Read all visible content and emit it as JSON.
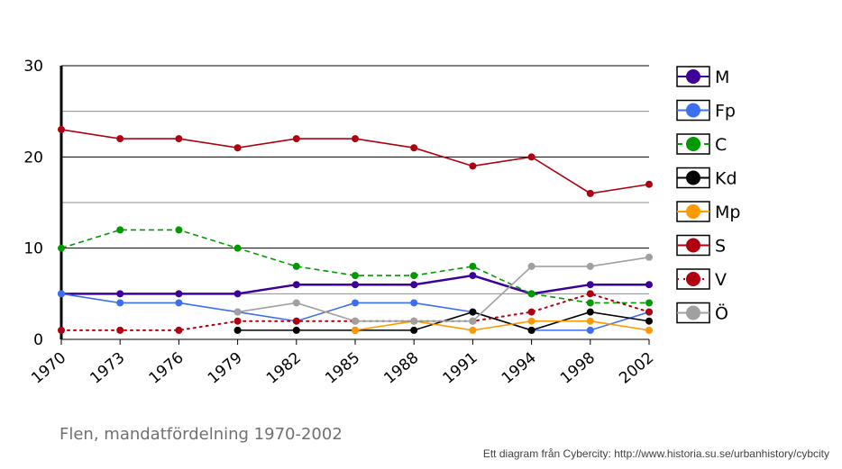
{
  "chart_data": {
    "type": "line",
    "title": "Flen, mandatfördelning 1970-2002",
    "xlabel": "",
    "ylabel": "",
    "ylim": [
      0,
      30
    ],
    "yticks": [
      0,
      10,
      20,
      30
    ],
    "grid": true,
    "legend_position": "right",
    "categories": [
      "1970",
      "1973",
      "1976",
      "1979",
      "1982",
      "1985",
      "1988",
      "1991",
      "1994",
      "1998",
      "2002"
    ],
    "series": [
      {
        "name": "M",
        "color": "#3d0099",
        "dash": "solid",
        "values": [
          5,
          5,
          5,
          5,
          6,
          6,
          6,
          7,
          5,
          6,
          6
        ]
      },
      {
        "name": "Fp",
        "color": "#3b6ff0",
        "dash": "solid",
        "values": [
          5,
          4,
          4,
          3,
          2,
          4,
          4,
          3,
          1,
          1,
          3
        ]
      },
      {
        "name": "C",
        "color": "#009900",
        "dash": "dashed",
        "values": [
          10,
          12,
          12,
          10,
          8,
          7,
          7,
          8,
          5,
          4,
          4
        ]
      },
      {
        "name": "Kd",
        "color": "#000000",
        "dash": "solid",
        "values": [
          null,
          null,
          null,
          1,
          1,
          1,
          1,
          3,
          1,
          3,
          2
        ]
      },
      {
        "name": "Mp",
        "color": "#ff9900",
        "dash": "solid",
        "values": [
          null,
          null,
          null,
          null,
          null,
          1,
          2,
          1,
          2,
          2,
          1
        ]
      },
      {
        "name": "S",
        "color": "#b00010",
        "dash": "solid",
        "values": [
          23,
          22,
          22,
          21,
          22,
          22,
          21,
          19,
          20,
          16,
          17
        ]
      },
      {
        "name": "V",
        "color": "#b00010",
        "dash": "dotted",
        "values": [
          1,
          1,
          1,
          2,
          2,
          2,
          2,
          2,
          3,
          5,
          3
        ]
      },
      {
        "name": "Ö",
        "color": "#a0a0a0",
        "dash": "solid",
        "values": [
          null,
          null,
          null,
          3,
          4,
          2,
          2,
          2,
          8,
          8,
          9
        ]
      }
    ]
  },
  "footer": {
    "credit": "Ett diagram från Cybercity: http://www.historia.su.se/urbanhistory/cybcity"
  }
}
